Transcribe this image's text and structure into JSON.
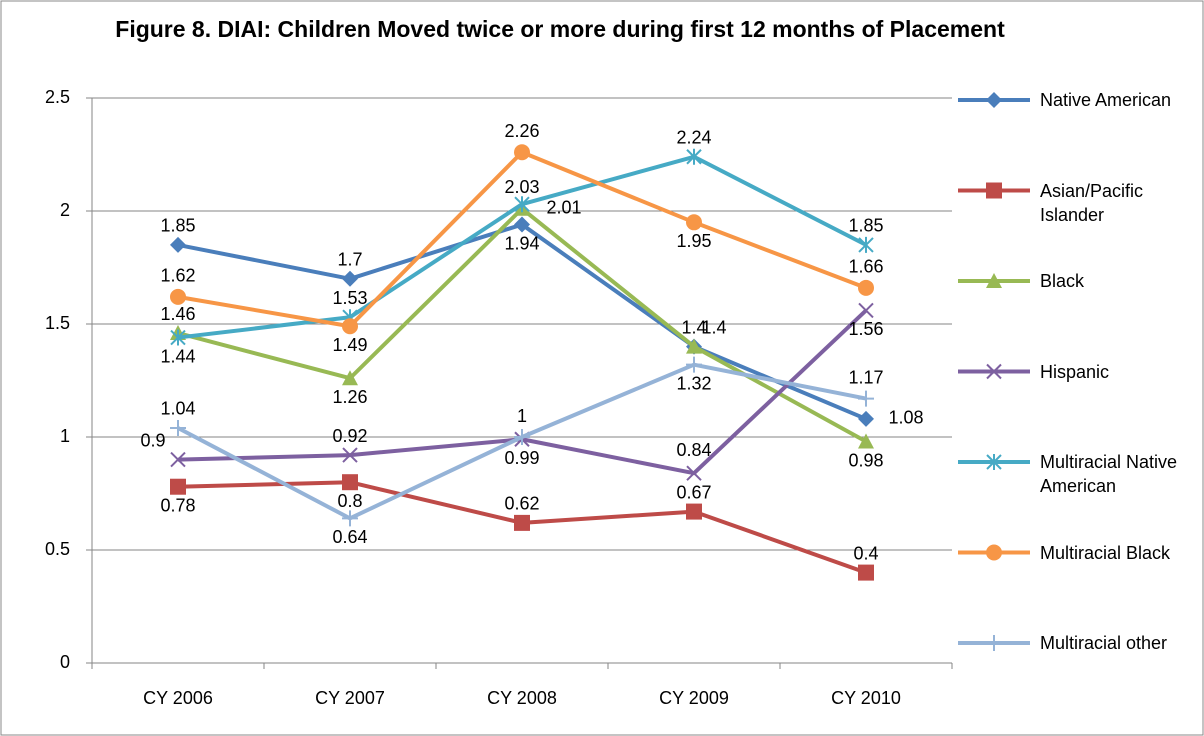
{
  "chart_data": {
    "type": "line",
    "title": "Figure 8. DIAI: Children Moved twice or more during first 12 months of Placement",
    "categories": [
      "CY 2006",
      "CY 2007",
      "CY 2008",
      "CY 2009",
      "CY 2010"
    ],
    "series": [
      {
        "name": "Native American",
        "color": "#4a7ebb",
        "marker": "diamond",
        "values": [
          1.85,
          1.7,
          1.94,
          1.4,
          1.08
        ]
      },
      {
        "name": "Asian/Pacific Islander",
        "color": "#be4b48",
        "marker": "square",
        "values": [
          0.78,
          0.8,
          0.62,
          0.67,
          0.4
        ]
      },
      {
        "name": "Black",
        "color": "#98b954",
        "marker": "triangle",
        "values": [
          1.46,
          1.26,
          2.01,
          1.4,
          0.98
        ]
      },
      {
        "name": "Hispanic",
        "color": "#7d60a0",
        "marker": "x",
        "values": [
          0.9,
          0.92,
          0.99,
          0.84,
          1.56
        ]
      },
      {
        "name": "Multiracial Native American",
        "color": "#46aac5",
        "marker": "asterisk",
        "values": [
          1.44,
          1.53,
          2.03,
          2.24,
          1.85
        ]
      },
      {
        "name": "Multiracial Black",
        "color": "#f79646",
        "marker": "circle",
        "values": [
          1.62,
          1.49,
          2.26,
          1.95,
          1.66
        ]
      },
      {
        "name": "Multiracial other",
        "color": "#95b3d7",
        "marker": "plus",
        "values": [
          1.04,
          0.64,
          1,
          1.32,
          1.17
        ]
      }
    ],
    "ylim": [
      0,
      2.5
    ],
    "yticks": [
      0,
      0.5,
      1,
      1.5,
      2,
      2.5
    ],
    "grid": true,
    "legend": "right"
  }
}
